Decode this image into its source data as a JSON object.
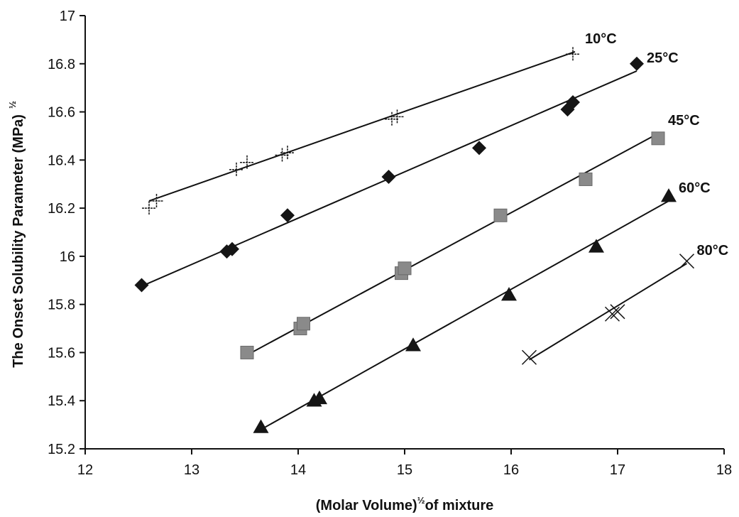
{
  "chart_data": {
    "type": "scatter",
    "xlabel": {
      "main": "(Molar Volume)",
      "sup": "½",
      "rest": "of mixture"
    },
    "ylabel": {
      "main": "The Onset Solubility Parameter (MPa)",
      "sup": "½"
    },
    "xlim": [
      12,
      18
    ],
    "ylim": [
      15.2,
      17
    ],
    "x_ticks": [
      "12",
      "13",
      "14",
      "15",
      "16",
      "17",
      "18"
    ],
    "y_ticks": [
      "15.2",
      "15.4",
      "15.6",
      "15.8",
      "16",
      "16.2",
      "16.4",
      "16.6",
      "16.8",
      "17"
    ],
    "grid": false,
    "series": [
      {
        "name": "10°C",
        "marker": "plus",
        "x": [
          12.6,
          12.67,
          13.42,
          13.52,
          13.85,
          13.9,
          14.88,
          14.93,
          16.58
        ],
        "y": [
          16.2,
          16.23,
          16.36,
          16.39,
          16.42,
          16.43,
          16.57,
          16.58,
          16.84
        ],
        "fit": {
          "x": [
            12.6,
            16.6
          ],
          "y": [
            16.23,
            16.85
          ]
        }
      },
      {
        "name": "25°C",
        "marker": "diamond",
        "x": [
          12.53,
          13.33,
          13.38,
          13.9,
          14.85,
          15.7,
          16.53,
          16.58,
          17.18
        ],
        "y": [
          15.88,
          16.02,
          16.03,
          16.17,
          16.33,
          16.45,
          16.61,
          16.64,
          16.8
        ],
        "fit": {
          "x": [
            12.5,
            17.18
          ],
          "y": [
            15.87,
            16.77
          ]
        }
      },
      {
        "name": "45°C",
        "marker": "square",
        "x": [
          13.52,
          14.02,
          14.05,
          14.97,
          15.0,
          15.9,
          16.7,
          17.38
        ],
        "y": [
          15.6,
          15.7,
          15.72,
          15.93,
          15.95,
          16.17,
          16.32,
          16.49
        ],
        "fit": {
          "x": [
            13.52,
            17.38
          ],
          "y": [
            15.59,
            16.51
          ]
        }
      },
      {
        "name": "60°C",
        "marker": "triangle",
        "x": [
          13.65,
          14.15,
          14.2,
          15.08,
          15.98,
          16.8,
          17.48
        ],
        "y": [
          15.29,
          15.4,
          15.41,
          15.63,
          15.84,
          16.04,
          16.25
        ],
        "fit": {
          "x": [
            13.65,
            17.48
          ],
          "y": [
            15.28,
            16.23
          ]
        }
      },
      {
        "name": "80°C",
        "marker": "cross",
        "x": [
          16.17,
          16.95,
          17.0,
          17.65
        ],
        "y": [
          15.58,
          15.76,
          15.77,
          15.98
        ],
        "fit": {
          "x": [
            16.17,
            17.65
          ],
          "y": [
            15.57,
            15.97
          ]
        }
      }
    ]
  },
  "colors": {
    "axis": "#111111",
    "marker_dark": "#151515",
    "marker_square": "#8a8a8a",
    "line": "#111111"
  }
}
